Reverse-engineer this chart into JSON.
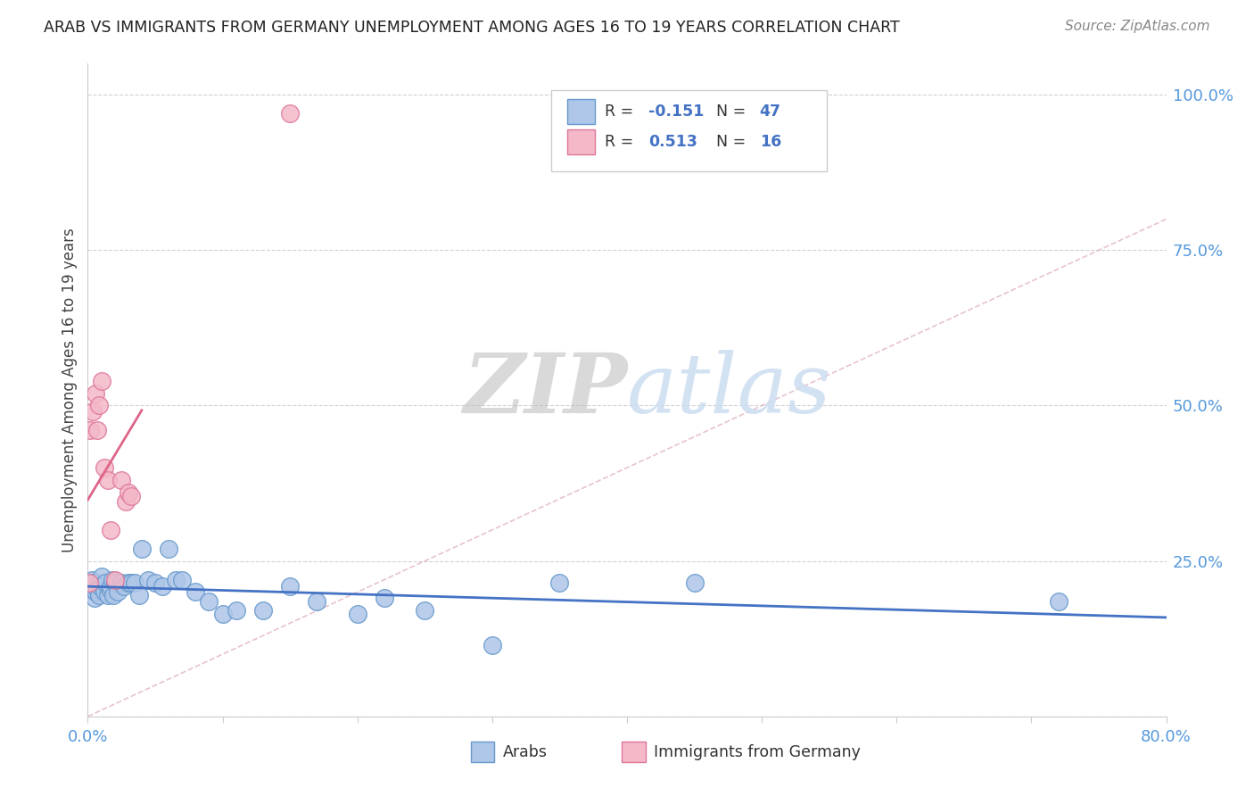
{
  "title": "ARAB VS IMMIGRANTS FROM GERMANY UNEMPLOYMENT AMONG AGES 16 TO 19 YEARS CORRELATION CHART",
  "source": "Source: ZipAtlas.com",
  "ylabel": "Unemployment Among Ages 16 to 19 years",
  "xlim": [
    0.0,
    0.8
  ],
  "ylim": [
    0.0,
    1.05
  ],
  "yticks": [
    0.0,
    0.25,
    0.5,
    0.75,
    1.0
  ],
  "yticklabels": [
    "",
    "25.0%",
    "50.0%",
    "75.0%",
    "100.0%"
  ],
  "xtick_positions": [
    0.0,
    0.1,
    0.2,
    0.3,
    0.4,
    0.5,
    0.6,
    0.7,
    0.8
  ],
  "xticklabels": [
    "0.0%",
    "",
    "",
    "",
    "",
    "",
    "",
    "",
    "80.0%"
  ],
  "arab_color": "#aec6e8",
  "arab_edge_color": "#6699cc",
  "immigrant_color": "#f4b8c8",
  "immigrant_edge_color": "#dd7799",
  "trend_arab_color": "#4472c4",
  "trend_immigrant_color": "#dd6688",
  "diagonal_color": "#ddaabb",
  "watermark_color": "#ccddf0",
  "legend_color": "#4472c4",
  "arab_x": [
    0.001,
    0.002,
    0.003,
    0.004,
    0.005,
    0.006,
    0.007,
    0.008,
    0.009,
    0.01,
    0.011,
    0.012,
    0.013,
    0.015,
    0.016,
    0.017,
    0.018,
    0.019,
    0.02,
    0.022,
    0.025,
    0.027,
    0.03,
    0.032,
    0.035,
    0.038,
    0.04,
    0.045,
    0.05,
    0.055,
    0.06,
    0.065,
    0.07,
    0.08,
    0.09,
    0.1,
    0.11,
    0.13,
    0.15,
    0.17,
    0.2,
    0.22,
    0.25,
    0.3,
    0.35,
    0.45,
    0.72
  ],
  "arab_y": [
    0.21,
    0.205,
    0.22,
    0.215,
    0.19,
    0.2,
    0.205,
    0.195,
    0.21,
    0.225,
    0.21,
    0.2,
    0.215,
    0.195,
    0.205,
    0.21,
    0.22,
    0.195,
    0.215,
    0.2,
    0.215,
    0.21,
    0.215,
    0.215,
    0.215,
    0.195,
    0.27,
    0.22,
    0.215,
    0.21,
    0.27,
    0.22,
    0.22,
    0.2,
    0.185,
    0.165,
    0.17,
    0.17,
    0.21,
    0.185,
    0.165,
    0.19,
    0.17,
    0.115,
    0.215,
    0.215,
    0.185
  ],
  "immigrant_x": [
    0.001,
    0.002,
    0.004,
    0.006,
    0.007,
    0.008,
    0.01,
    0.012,
    0.015,
    0.017,
    0.02,
    0.025,
    0.028,
    0.03,
    0.032,
    0.15
  ],
  "immigrant_y": [
    0.215,
    0.46,
    0.49,
    0.52,
    0.46,
    0.5,
    0.54,
    0.4,
    0.38,
    0.3,
    0.22,
    0.38,
    0.345,
    0.36,
    0.355,
    0.97
  ]
}
